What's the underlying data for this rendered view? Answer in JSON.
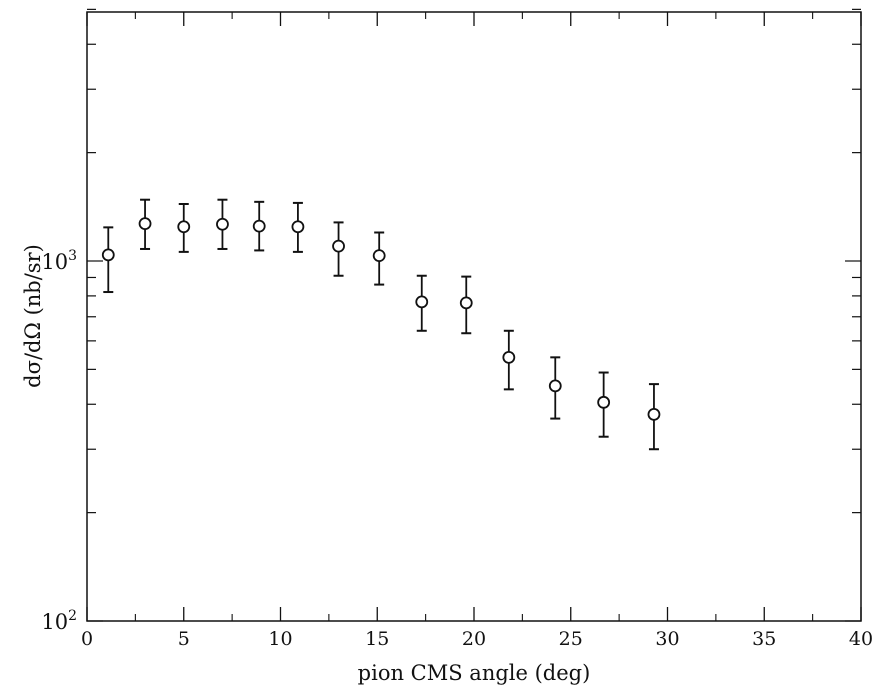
{
  "chart_data": {
    "type": "scatter",
    "title": "",
    "xlabel": "pion CMS angle (deg)",
    "ylabel": "dσ/dΩ  (nb/sr)",
    "xlim": [
      0,
      40
    ],
    "ylim": [
      100,
      5000
    ],
    "yscale": "log",
    "grid": false,
    "legend": "none",
    "marker": "open-circle",
    "x_ticks": [
      0,
      5,
      10,
      15,
      20,
      25,
      30,
      35,
      40
    ],
    "x_tick_labels": [
      "0",
      "5",
      "10",
      "15",
      "20",
      "25",
      "30",
      "35",
      "40"
    ],
    "y_major_ticks": [
      {
        "base": "10",
        "exp": "2",
        "value": 100
      },
      {
        "base": "10",
        "exp": "3",
        "value": 1000
      }
    ],
    "series": [
      {
        "points": [
          {
            "x": 1.1,
            "y": 1040,
            "yerr_low": 820,
            "yerr_high": 1240
          },
          {
            "x": 3.0,
            "y": 1270,
            "yerr_low": 1080,
            "yerr_high": 1480
          },
          {
            "x": 5.0,
            "y": 1245,
            "yerr_low": 1060,
            "yerr_high": 1440
          },
          {
            "x": 7.0,
            "y": 1265,
            "yerr_low": 1080,
            "yerr_high": 1480
          },
          {
            "x": 8.9,
            "y": 1250,
            "yerr_low": 1070,
            "yerr_high": 1460
          },
          {
            "x": 10.9,
            "y": 1245,
            "yerr_low": 1060,
            "yerr_high": 1450
          },
          {
            "x": 13.0,
            "y": 1100,
            "yerr_low": 910,
            "yerr_high": 1280
          },
          {
            "x": 15.1,
            "y": 1035,
            "yerr_low": 860,
            "yerr_high": 1200
          },
          {
            "x": 17.3,
            "y": 770,
            "yerr_low": 640,
            "yerr_high": 910
          },
          {
            "x": 19.6,
            "y": 765,
            "yerr_low": 630,
            "yerr_high": 905
          },
          {
            "x": 21.8,
            "y": 540,
            "yerr_low": 440,
            "yerr_high": 640
          },
          {
            "x": 24.2,
            "y": 450,
            "yerr_low": 365,
            "yerr_high": 540
          },
          {
            "x": 26.7,
            "y": 405,
            "yerr_low": 325,
            "yerr_high": 490
          },
          {
            "x": 29.3,
            "y": 375,
            "yerr_low": 300,
            "yerr_high": 455
          }
        ]
      }
    ]
  }
}
